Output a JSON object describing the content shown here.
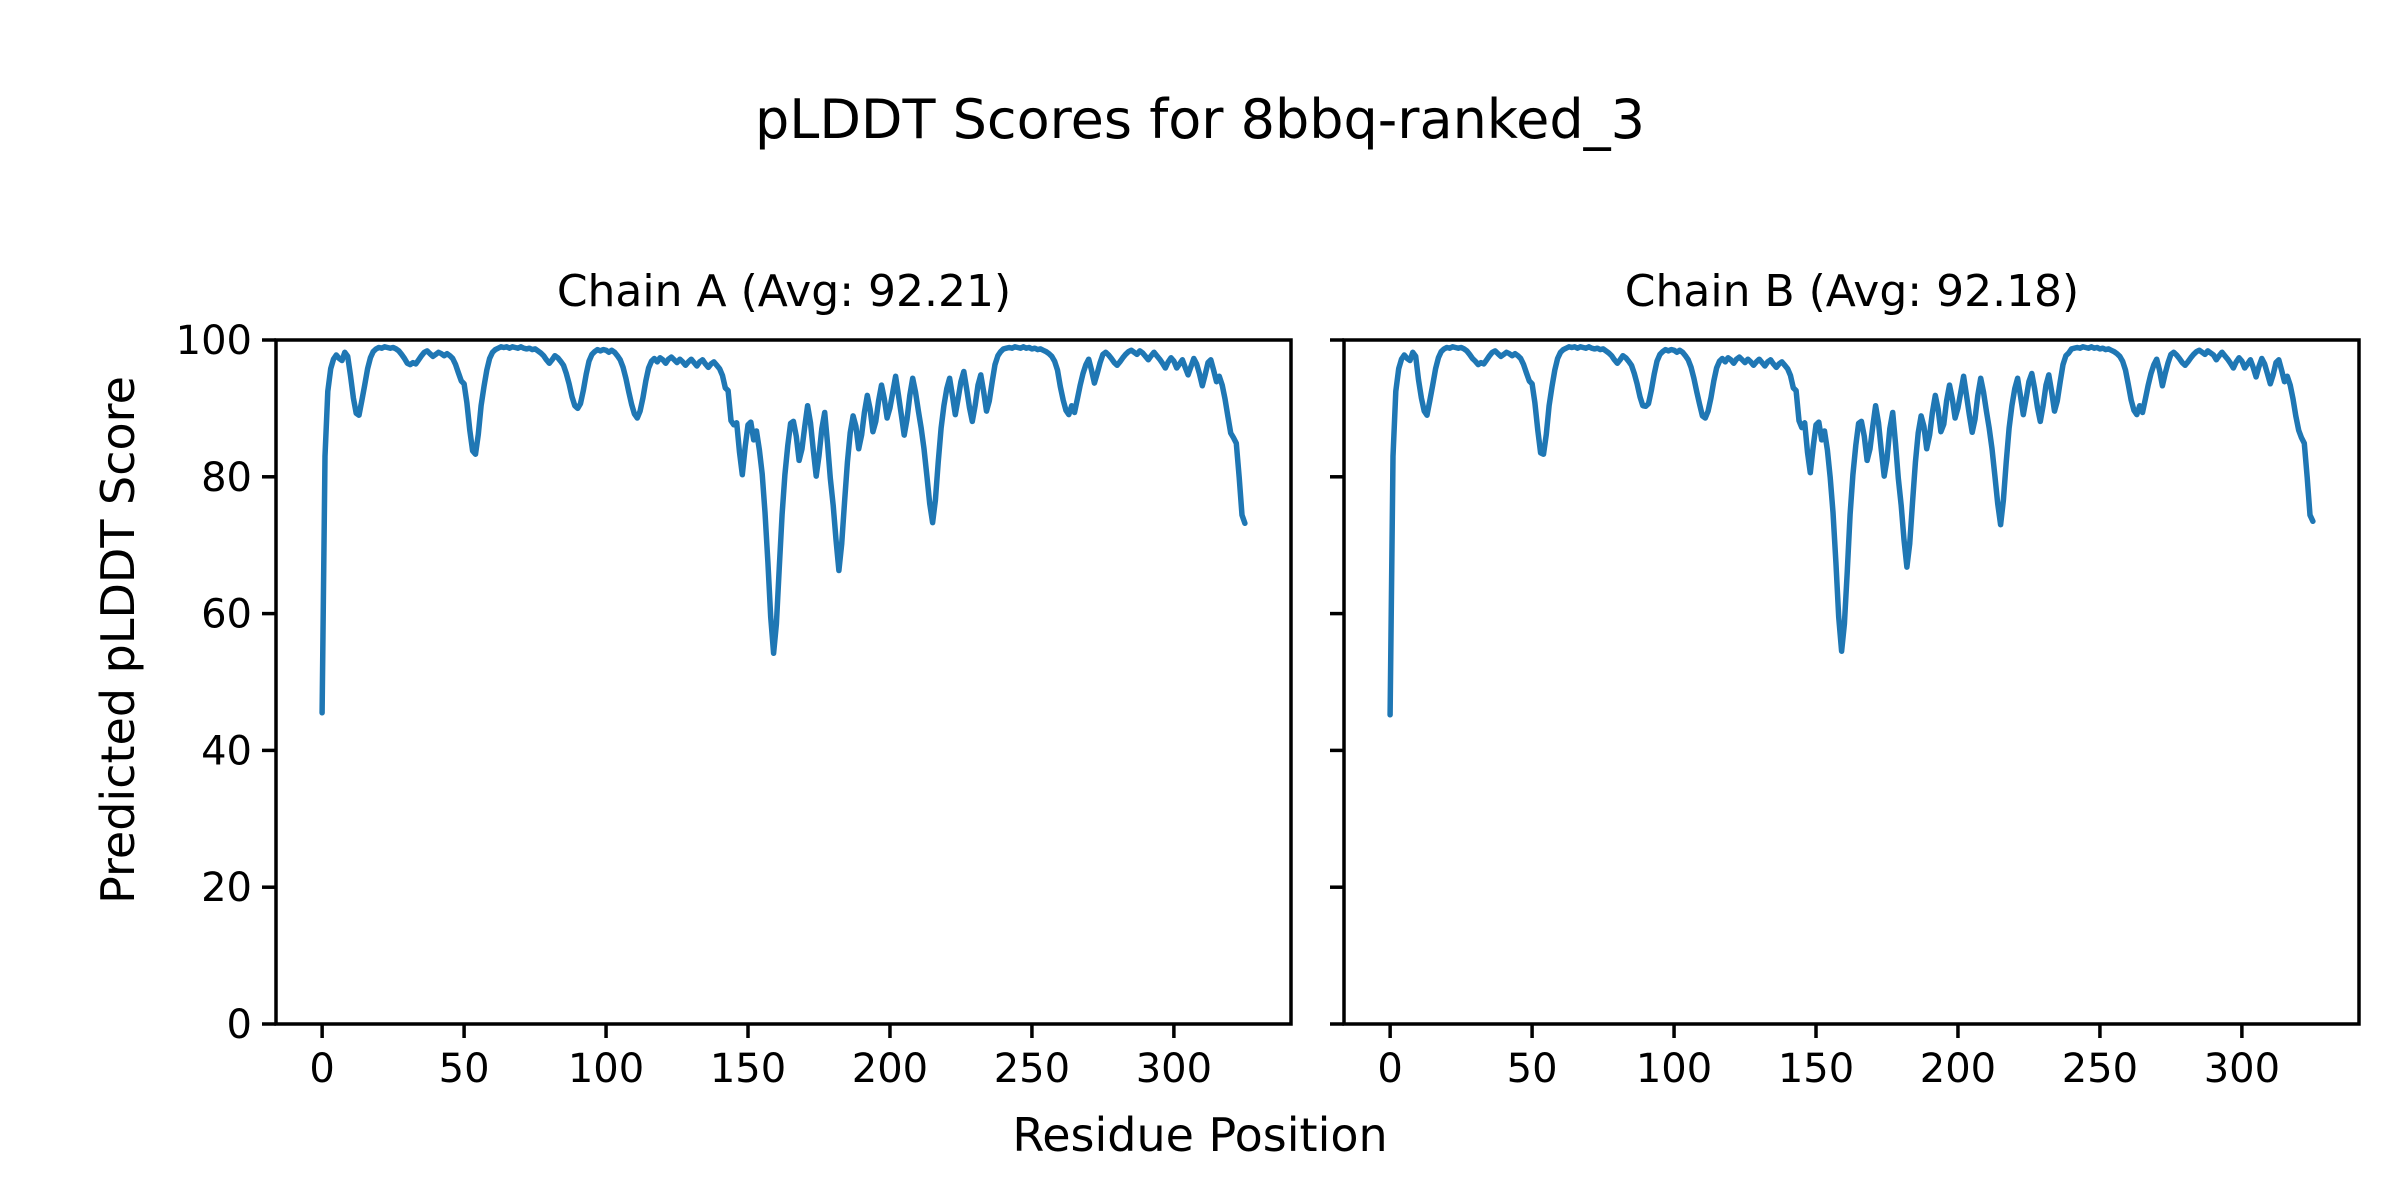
{
  "figure": {
    "title": "pLDDT Scores for 8bbq-ranked_3",
    "xlabel": "Residue Position",
    "ylabel": "Predicted pLDDT Score",
    "background_color": "#ffffff",
    "text_color": "#000000"
  },
  "chart_data": [
    {
      "type": "line",
      "title": "Chain A (Avg: 92.21)",
      "chain": "A",
      "average": 92.21,
      "line_color": "#1f77b4",
      "x_start": 0,
      "xticks": [
        0,
        50,
        100,
        150,
        200,
        250,
        300
      ],
      "yticks": [
        0,
        20,
        40,
        60,
        80,
        100
      ],
      "xlim": [
        -16.25,
        341.25
      ],
      "ylim": [
        0,
        100
      ],
      "grid": false,
      "legend": "none",
      "values": [
        45.5,
        83.0,
        92.5,
        95.8,
        97.2,
        97.8,
        97.3,
        97.0,
        98.2,
        97.6,
        94.8,
        91.5,
        89.3,
        89.0,
        91.2,
        93.4,
        95.8,
        97.4,
        98.3,
        98.7,
        98.9,
        98.8,
        99.0,
        98.9,
        98.8,
        98.9,
        98.7,
        98.4,
        97.9,
        97.3,
        96.6,
        96.4,
        96.7,
        96.5,
        97.1,
        97.7,
        98.2,
        98.4,
        98.0,
        97.6,
        97.9,
        98.2,
        98.0,
        97.7,
        98.0,
        97.7,
        97.3,
        96.4,
        95.2,
        94.0,
        93.6,
        90.8,
        86.8,
        83.8,
        83.3,
        86.2,
        90.4,
        93.2,
        95.6,
        97.3,
        98.2,
        98.6,
        98.8,
        99.0,
        98.9,
        99.0,
        98.8,
        99.0,
        98.9,
        98.8,
        99.0,
        98.8,
        98.7,
        98.8,
        98.6,
        98.7,
        98.4,
        98.1,
        97.7,
        97.1,
        96.6,
        97.1,
        97.7,
        97.4,
        96.9,
        96.3,
        95.1,
        93.6,
        91.7,
        90.4,
        90.0,
        90.7,
        92.6,
        95.0,
        96.9,
        97.9,
        98.3,
        98.6,
        98.4,
        98.6,
        98.5,
        98.2,
        98.5,
        98.2,
        97.7,
        97.1,
        96.0,
        94.4,
        92.4,
        90.6,
        89.2,
        88.6,
        89.6,
        91.6,
        94.0,
        95.9,
        96.9,
        97.3,
        96.8,
        97.4,
        97.1,
        96.6,
        97.2,
        97.5,
        97.1,
        96.7,
        97.2,
        96.8,
        96.3,
        96.8,
        97.2,
        96.7,
        96.2,
        96.8,
        97.1,
        96.5,
        96.0,
        96.5,
        96.8,
        96.3,
        95.8,
        94.8,
        93.0,
        92.6,
        88.2,
        87.6,
        87.9,
        83.6,
        80.3,
        84.4,
        87.6,
        88.0,
        85.4,
        86.7,
        83.9,
        80.4,
        74.8,
        67.5,
        59.5,
        54.2,
        58.5,
        66.5,
        74.5,
        80.3,
        84.6,
        87.8,
        88.1,
        85.9,
        82.4,
        84.1,
        87.4,
        90.4,
        87.9,
        83.9,
        80.1,
        83.1,
        87.0,
        89.4,
        84.9,
        79.8,
        75.8,
        70.8,
        66.3,
        70.2,
        76.2,
        82.1,
        86.4,
        88.9,
        87.4,
        84.1,
        86.1,
        89.4,
        91.9,
        89.9,
        86.6,
        88.1,
        91.1,
        93.4,
        91.4,
        88.6,
        90.1,
        92.4,
        94.7,
        91.9,
        89.1,
        86.1,
        88.4,
        91.9,
        94.4,
        92.4,
        89.6,
        87.1,
        84.1,
        80.1,
        76.1,
        73.3,
        76.6,
        82.1,
        87.1,
        90.4,
        92.9,
        94.4,
        91.9,
        89.1,
        91.4,
        93.9,
        95.4,
        92.9,
        90.1,
        88.1,
        90.4,
        93.4,
        94.9,
        92.4,
        89.6,
        91.1,
        93.9,
        96.4,
        97.7,
        98.3,
        98.7,
        98.8,
        98.9,
        98.8,
        99.0,
        98.9,
        98.8,
        99.0,
        98.8,
        98.9,
        98.7,
        98.8,
        98.6,
        98.7,
        98.5,
        98.3,
        98.0,
        97.6,
        96.9,
        95.6,
        93.2,
        91.2,
        89.7,
        89.1,
        90.4,
        89.4,
        91.4,
        93.4,
        95.1,
        96.4,
        97.2,
        95.6,
        93.7,
        95.1,
        96.7,
        97.9,
        98.2,
        97.8,
        97.3,
        96.7,
        96.3,
        96.8,
        97.4,
        97.9,
        98.3,
        98.5,
        98.2,
        97.9,
        98.4,
        98.1,
        97.6,
        97.1,
        97.7,
        98.2,
        97.7,
        97.2,
        96.6,
        95.9,
        96.8,
        97.4,
        96.9,
        95.9,
        96.5,
        97.1,
        96.0,
        94.9,
        96.1,
        97.3,
        96.5,
        95.1,
        93.3,
        94.9,
        96.7,
        97.1,
        95.6,
        93.9,
        94.7,
        93.4,
        91.4,
        88.9,
        86.4,
        85.7,
        84.9,
        79.9,
        74.4,
        73.2
      ]
    },
    {
      "type": "line",
      "title": "Chain B (Avg: 92.18)",
      "chain": "B",
      "average": 92.18,
      "line_color": "#1f77b4",
      "x_start": 0,
      "xticks": [
        0,
        50,
        100,
        150,
        200,
        250,
        300
      ],
      "yticks": [
        0,
        20,
        40,
        60,
        80,
        100
      ],
      "xlim": [
        -16.25,
        341.25
      ],
      "ylim": [
        0,
        100
      ],
      "grid": false,
      "legend": "none",
      "values": [
        45.2,
        83.0,
        92.5,
        95.8,
        97.2,
        97.8,
        97.3,
        97.0,
        98.2,
        97.6,
        94.2,
        91.5,
        89.6,
        89.0,
        91.2,
        93.4,
        95.8,
        97.4,
        98.3,
        98.7,
        98.9,
        98.8,
        99.0,
        98.9,
        98.8,
        98.9,
        98.7,
        98.4,
        97.9,
        97.3,
        96.9,
        96.4,
        96.7,
        96.5,
        97.1,
        97.7,
        98.2,
        98.4,
        98.0,
        97.6,
        97.9,
        98.2,
        98.0,
        97.7,
        98.0,
        97.7,
        97.3,
        96.4,
        95.2,
        94.0,
        93.6,
        90.8,
        86.8,
        83.5,
        83.3,
        86.2,
        90.4,
        93.2,
        95.6,
        97.3,
        98.2,
        98.6,
        98.8,
        99.0,
        98.9,
        99.0,
        98.8,
        99.0,
        98.9,
        98.8,
        99.0,
        98.8,
        98.7,
        98.8,
        98.6,
        98.7,
        98.4,
        98.1,
        97.7,
        97.1,
        96.6,
        97.1,
        97.7,
        97.4,
        96.9,
        96.3,
        95.1,
        93.6,
        91.7,
        90.4,
        90.3,
        90.7,
        92.6,
        95.0,
        96.9,
        97.9,
        98.3,
        98.6,
        98.4,
        98.6,
        98.5,
        98.2,
        98.5,
        98.2,
        97.7,
        97.1,
        96.0,
        94.4,
        92.4,
        90.6,
        88.9,
        88.6,
        89.6,
        91.6,
        94.0,
        95.9,
        96.9,
        97.3,
        96.8,
        97.4,
        97.1,
        96.6,
        97.2,
        97.5,
        97.1,
        96.7,
        97.2,
        96.8,
        96.3,
        96.8,
        97.2,
        96.7,
        96.2,
        96.8,
        97.1,
        96.5,
        96.0,
        96.5,
        96.8,
        96.3,
        95.8,
        94.8,
        93.0,
        92.6,
        88.2,
        87.2,
        87.9,
        83.6,
        80.6,
        84.4,
        87.6,
        88.0,
        85.4,
        86.7,
        83.9,
        79.9,
        74.8,
        67.5,
        59.5,
        54.5,
        58.5,
        66.0,
        74.5,
        80.3,
        84.6,
        87.8,
        88.1,
        85.9,
        82.4,
        84.1,
        87.4,
        90.4,
        87.9,
        83.9,
        80.1,
        82.6,
        87.0,
        89.4,
        84.9,
        79.8,
        75.8,
        70.8,
        66.8,
        70.2,
        76.2,
        82.1,
        86.4,
        88.9,
        87.4,
        84.1,
        86.1,
        89.4,
        91.9,
        89.9,
        86.6,
        87.7,
        91.1,
        93.4,
        91.4,
        88.6,
        90.1,
        92.4,
        94.7,
        91.9,
        89.1,
        86.5,
        88.4,
        91.9,
        94.4,
        92.4,
        89.6,
        87.1,
        84.1,
        80.1,
        76.1,
        73.0,
        76.6,
        82.1,
        87.1,
        90.4,
        92.9,
        94.4,
        91.9,
        89.1,
        91.4,
        93.9,
        95.1,
        92.9,
        90.1,
        88.1,
        90.4,
        93.4,
        94.9,
        92.4,
        89.6,
        91.1,
        93.9,
        96.4,
        97.7,
        98.1,
        98.7,
        98.8,
        98.9,
        98.8,
        99.0,
        98.9,
        98.8,
        99.0,
        98.8,
        98.9,
        98.7,
        98.8,
        98.6,
        98.7,
        98.5,
        98.3,
        98.0,
        97.6,
        96.9,
        95.6,
        93.5,
        91.2,
        89.7,
        89.1,
        90.4,
        89.4,
        91.4,
        93.4,
        95.1,
        96.4,
        97.2,
        95.6,
        93.3,
        95.1,
        96.7,
        97.9,
        98.2,
        97.8,
        97.3,
        96.7,
        96.3,
        96.8,
        97.4,
        97.9,
        98.3,
        98.5,
        98.2,
        97.9,
        98.4,
        98.1,
        97.8,
        97.1,
        97.7,
        98.2,
        97.7,
        97.2,
        96.6,
        95.9,
        96.8,
        97.4,
        96.9,
        95.9,
        96.5,
        97.1,
        96.0,
        94.6,
        96.1,
        97.3,
        96.5,
        95.1,
        93.6,
        94.9,
        96.7,
        97.1,
        95.6,
        93.9,
        94.7,
        93.4,
        91.4,
        88.9,
        86.8,
        85.7,
        84.9,
        79.9,
        74.4,
        73.5
      ]
    }
  ]
}
